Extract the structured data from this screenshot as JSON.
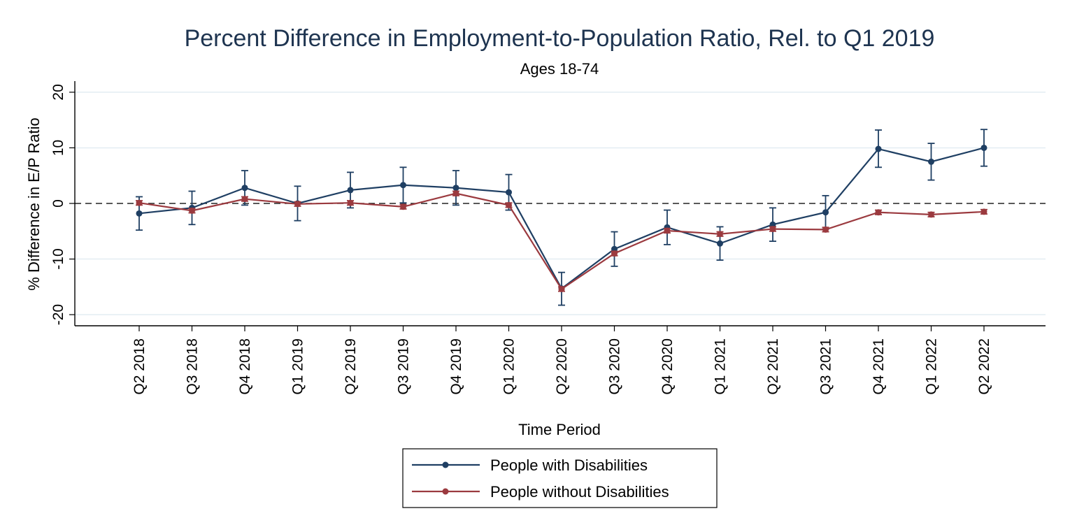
{
  "chart_data": {
    "type": "line",
    "title": "Percent Difference in Employment-to-Population Ratio, Rel. to Q1 2019",
    "subtitle": "Ages 18-74",
    "xlabel": "Time Period",
    "ylabel": "% Difference in E/P Ratio",
    "ylim": [
      -22,
      22
    ],
    "yticks": [
      -20,
      -10,
      0,
      10,
      20
    ],
    "ytick_labels": [
      "-20",
      "-10",
      "0",
      "10",
      "20"
    ],
    "reference_line": 0,
    "grid": "horizontal",
    "legend_position": "bottom",
    "categories": [
      "Q2 2018",
      "Q3 2018",
      "Q4 2018",
      "Q1 2019",
      "Q2 2019",
      "Q3 2019",
      "Q4 2019",
      "Q1 2020",
      "Q2 2020",
      "Q3 2020",
      "Q4 2020",
      "Q1 2021",
      "Q2 2021",
      "Q3 2021",
      "Q4 2021",
      "Q1 2022",
      "Q2 2022"
    ],
    "series": [
      {
        "name": "People with Disabilities",
        "color": "#1f3f63",
        "values": [
          -1.8,
          -0.8,
          2.8,
          0.0,
          2.4,
          3.3,
          2.8,
          2.0,
          -15.3,
          -8.2,
          -4.3,
          -7.2,
          -3.8,
          -1.6,
          9.8,
          7.5,
          10.0
        ],
        "lower": [
          -4.8,
          -3.8,
          -0.3,
          -3.1,
          -0.8,
          0.1,
          -0.3,
          -1.2,
          -18.3,
          -11.3,
          -7.4,
          -10.2,
          -6.8,
          -4.6,
          6.5,
          4.2,
          6.7
        ],
        "upper": [
          1.2,
          2.2,
          5.9,
          3.1,
          5.6,
          6.5,
          5.9,
          5.2,
          -12.4,
          -5.1,
          -1.2,
          -4.2,
          -0.8,
          1.4,
          13.2,
          10.8,
          13.3
        ]
      },
      {
        "name": "People without Disabilities",
        "color": "#9b3a3f",
        "values": [
          0.1,
          -1.3,
          0.8,
          -0.1,
          0.1,
          -0.6,
          1.8,
          -0.3,
          -15.4,
          -9.0,
          -4.9,
          -5.5,
          -4.6,
          -4.7,
          -1.6,
          -2.0,
          -1.5
        ],
        "lower": [
          -0.3,
          -1.7,
          0.4,
          -0.5,
          -0.3,
          -1.0,
          1.4,
          -0.7,
          -15.8,
          -9.4,
          -5.3,
          -5.9,
          -5.0,
          -5.1,
          -2.0,
          -2.4,
          -1.9
        ],
        "upper": [
          0.5,
          -0.9,
          1.2,
          0.3,
          0.5,
          -0.2,
          2.2,
          0.1,
          -15.0,
          -8.6,
          -4.5,
          -5.1,
          -4.2,
          -4.3,
          -1.2,
          -1.6,
          -1.1
        ]
      }
    ]
  }
}
